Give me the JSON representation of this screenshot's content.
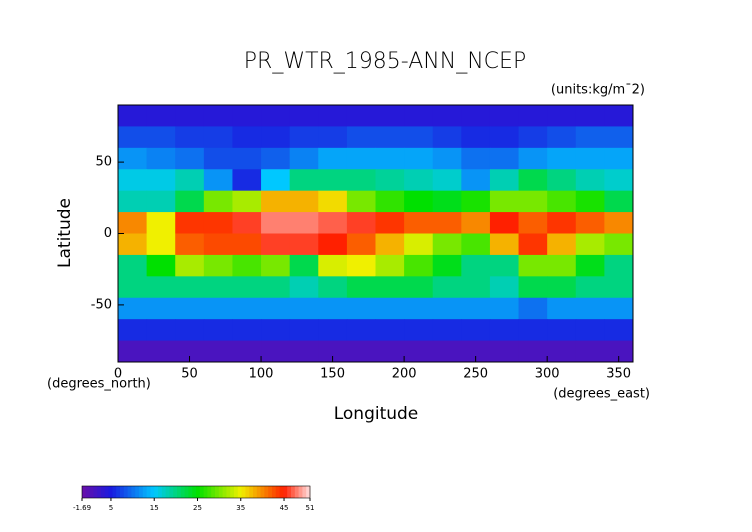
{
  "chart_data": {
    "type": "heatmap",
    "title": "PR_WTR_1985-ANN_NCEP",
    "units": "(units:kg/m¯2)",
    "xlabel": "Longitude",
    "ylabel": "Latitude",
    "xunits": "(degrees_east)",
    "yunits": "(degrees_north)",
    "xlim": [
      0,
      360
    ],
    "ylim": [
      -90,
      90
    ],
    "xticks": [
      0,
      50,
      100,
      150,
      200,
      250,
      300,
      350
    ],
    "yticks": [
      -50,
      0,
      50
    ],
    "x": [
      10,
      30,
      50,
      70,
      90,
      110,
      130,
      150,
      170,
      190,
      210,
      230,
      250,
      270,
      290,
      310,
      330,
      350
    ],
    "y": [
      82.5,
      67.5,
      52.5,
      37.5,
      22.5,
      7.5,
      -7.5,
      -22.5,
      -37.5,
      -52.5,
      -67.5,
      -82.5
    ],
    "values": [
      [
        4,
        4,
        4,
        4,
        4,
        4,
        4,
        4,
        4,
        4,
        4,
        4,
        4,
        4,
        4,
        4,
        4,
        4
      ],
      [
        8,
        8,
        7,
        7,
        6,
        6,
        7,
        7,
        8,
        8,
        8,
        7,
        6,
        6,
        7,
        8,
        9,
        9
      ],
      [
        12,
        11,
        10,
        8,
        8,
        9,
        11,
        13,
        13,
        13,
        13,
        12,
        10,
        10,
        12,
        13,
        13,
        13
      ],
      [
        16,
        16,
        18,
        12,
        6,
        15,
        20,
        20,
        20,
        19,
        18,
        17,
        12,
        18,
        22,
        20,
        18,
        17
      ],
      [
        18,
        18,
        22,
        30,
        32,
        38,
        38,
        36,
        30,
        27,
        25,
        24,
        26,
        30,
        30,
        28,
        26,
        22
      ],
      [
        40,
        35,
        44,
        44,
        46,
        48,
        48,
        47,
        46,
        44,
        42,
        42,
        40,
        45,
        42,
        44,
        42,
        40
      ],
      [
        38,
        35,
        42,
        43,
        43,
        46,
        46,
        45,
        42,
        38,
        34,
        30,
        28,
        38,
        44,
        38,
        32,
        30
      ],
      [
        20,
        25,
        32,
        30,
        28,
        30,
        22,
        34,
        35,
        32,
        28,
        24,
        20,
        20,
        30,
        30,
        24,
        20
      ],
      [
        20,
        20,
        20,
        20,
        20,
        20,
        18,
        20,
        22,
        22,
        22,
        20,
        20,
        18,
        22,
        22,
        20,
        20
      ],
      [
        12,
        12,
        12,
        12,
        12,
        12,
        12,
        12,
        12,
        12,
        12,
        12,
        12,
        12,
        10,
        12,
        12,
        12
      ],
      [
        6,
        6,
        6,
        6,
        6,
        6,
        6,
        6,
        6,
        6,
        6,
        6,
        6,
        6,
        6,
        6,
        6,
        6
      ],
      [
        1,
        1,
        1,
        1,
        1,
        1,
        1,
        1,
        1,
        1,
        1,
        1,
        1,
        1,
        1,
        1,
        1,
        1
      ]
    ],
    "colorbar": {
      "ticks": [
        -1.69,
        5,
        15,
        25,
        35,
        45,
        51
      ],
      "colors": [
        "#6a10a8",
        "#1a1ae0",
        "#00c8ff",
        "#00e000",
        "#f0f000",
        "#ff2000",
        "#ffe0e0"
      ]
    }
  }
}
